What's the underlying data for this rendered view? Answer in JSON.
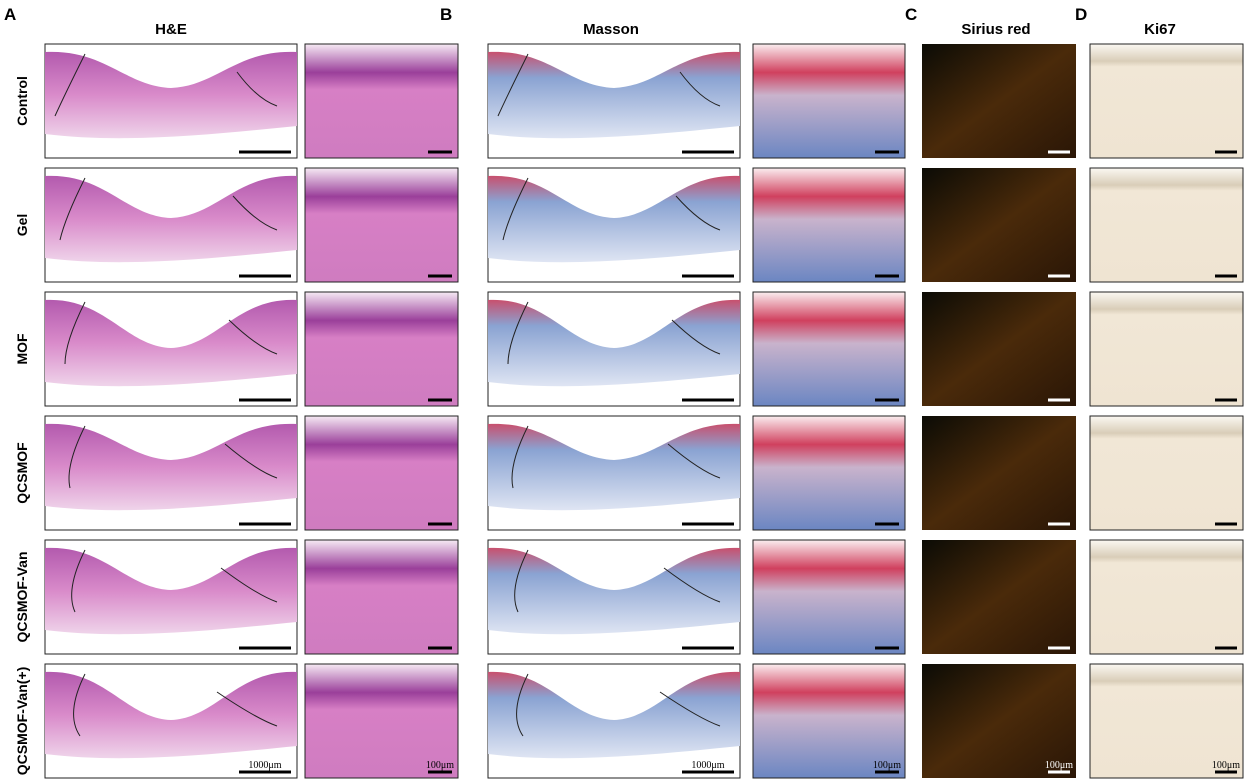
{
  "panels": [
    {
      "letter": "A",
      "title": "H&E",
      "scale_labels": [
        "1000μm",
        "100μm"
      ]
    },
    {
      "letter": "B",
      "title": "Masson",
      "scale_labels": [
        "1000μm",
        "100μm"
      ]
    },
    {
      "letter": "C",
      "title": "Sirius red",
      "scale_labels": [
        "100μm"
      ]
    },
    {
      "letter": "D",
      "title": "Ki67",
      "scale_labels": [
        "100μm"
      ]
    }
  ],
  "rows": [
    "Control",
    "Gel",
    "MOF",
    "QCSMOF",
    "QCSMOF-Van",
    "QCSMOF-Van(+)"
  ]
}
